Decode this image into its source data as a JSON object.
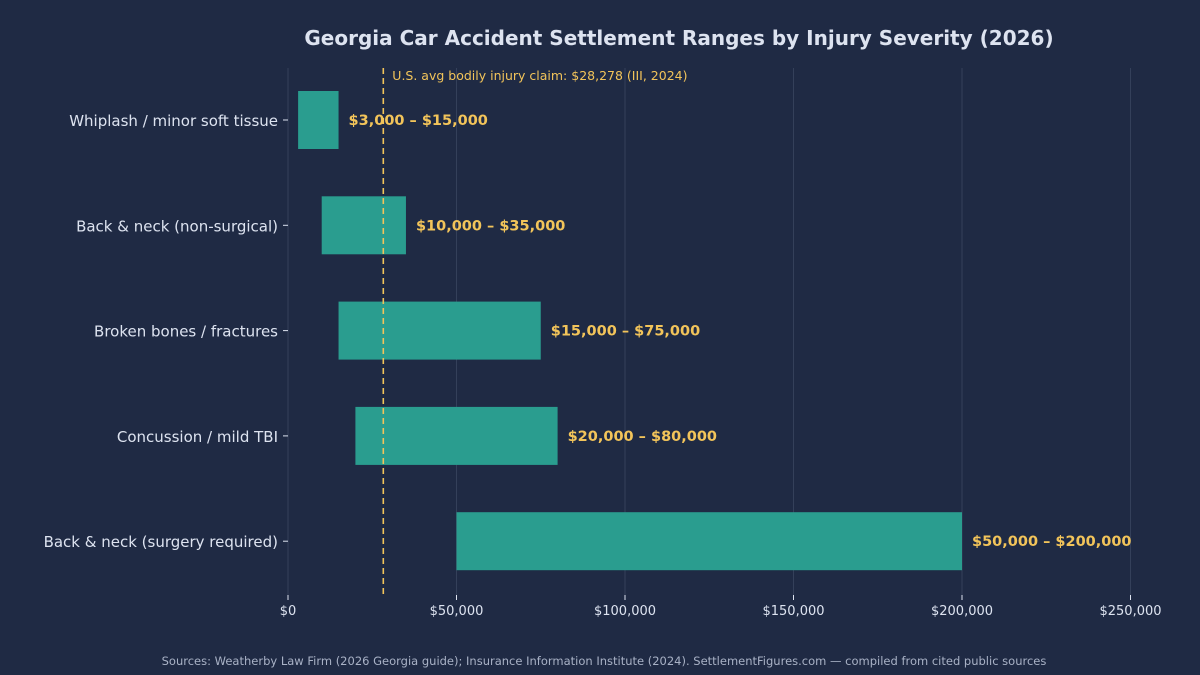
{
  "colors": {
    "background": "#1f2a44",
    "bar": "#2a9d8f",
    "accent": "#f2c45a",
    "text": "#dde3f0",
    "grid": "#34405a",
    "note": "#a9b2c6"
  },
  "chart_data": {
    "type": "bar",
    "orientation": "horizontal",
    "bar_style": "floating-range",
    "title": "Georgia Car Accident Settlement Ranges by Injury Severity (2026)",
    "xlabel": "",
    "ylabel": "",
    "xlim": [
      0,
      260000
    ],
    "grid": "vertical",
    "categories": [
      "Whiplash / minor soft tissue",
      "Back & neck (non-surgical)",
      "Broken bones / fractures",
      "Concussion / mild TBI",
      "Back & neck (surgery required)"
    ],
    "series": [
      {
        "low": [
          3000,
          10000,
          15000,
          20000,
          50000
        ],
        "high": [
          15000,
          35000,
          75000,
          80000,
          200000
        ]
      }
    ],
    "data_labels": [
      "$3,000 – $15,000",
      "$10,000 – $35,000",
      "$15,000 – $75,000",
      "$20,000 – $80,000",
      "$50,000 – $200,000"
    ],
    "x_ticks": [
      {
        "value": 0,
        "label": "$0"
      },
      {
        "value": 50000,
        "label": "$50,000"
      },
      {
        "value": 100000,
        "label": "$100,000"
      },
      {
        "value": 150000,
        "label": "$150,000"
      },
      {
        "value": 200000,
        "label": "$200,000"
      },
      {
        "value": 250000,
        "label": "$250,000"
      }
    ],
    "reference_line": {
      "value": 28278,
      "label": "U.S. avg bodily injury claim: $28,278 (III, 2024)",
      "style": "dashed"
    }
  },
  "footer": {
    "sources": "Sources: Weatherby Law Firm (2026 Georgia guide); Insurance Information Institute (2024). SettlementFigures.com — compiled from cited public sources"
  }
}
